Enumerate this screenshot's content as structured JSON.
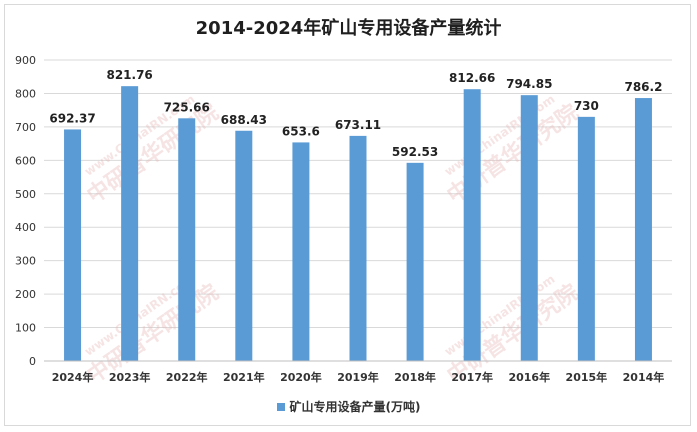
{
  "chart_data": {
    "type": "bar",
    "title": "2014-2024年矿山专用设备产量统计",
    "categories": [
      "2024年",
      "2023年",
      "2022年",
      "2021年",
      "2020年",
      "2019年",
      "2018年",
      "2017年",
      "2016年",
      "2015年",
      "2014年"
    ],
    "series": [
      {
        "name": "矿山专用设备产量(万吨)",
        "values": [
          692.37,
          821.76,
          725.66,
          688.43,
          653.6,
          673.11,
          592.53,
          812.66,
          794.85,
          730,
          786.2
        ],
        "labels": [
          "692.37",
          "821.76",
          "725.66",
          "688.43",
          "653.6",
          "673.11",
          "592.53",
          "812.66",
          "794.85",
          "730",
          "786.2"
        ],
        "color": "#5b9bd5"
      }
    ],
    "ylim": [
      0,
      900
    ],
    "yticks": [
      0,
      100,
      200,
      300,
      400,
      500,
      600,
      700,
      800,
      900
    ],
    "grid": true,
    "legend": "bottom",
    "xlabel": "",
    "ylabel": ""
  },
  "watermark": {
    "url_text": "www.ChinaIRN.com",
    "name_text": "中研普华研究院"
  }
}
